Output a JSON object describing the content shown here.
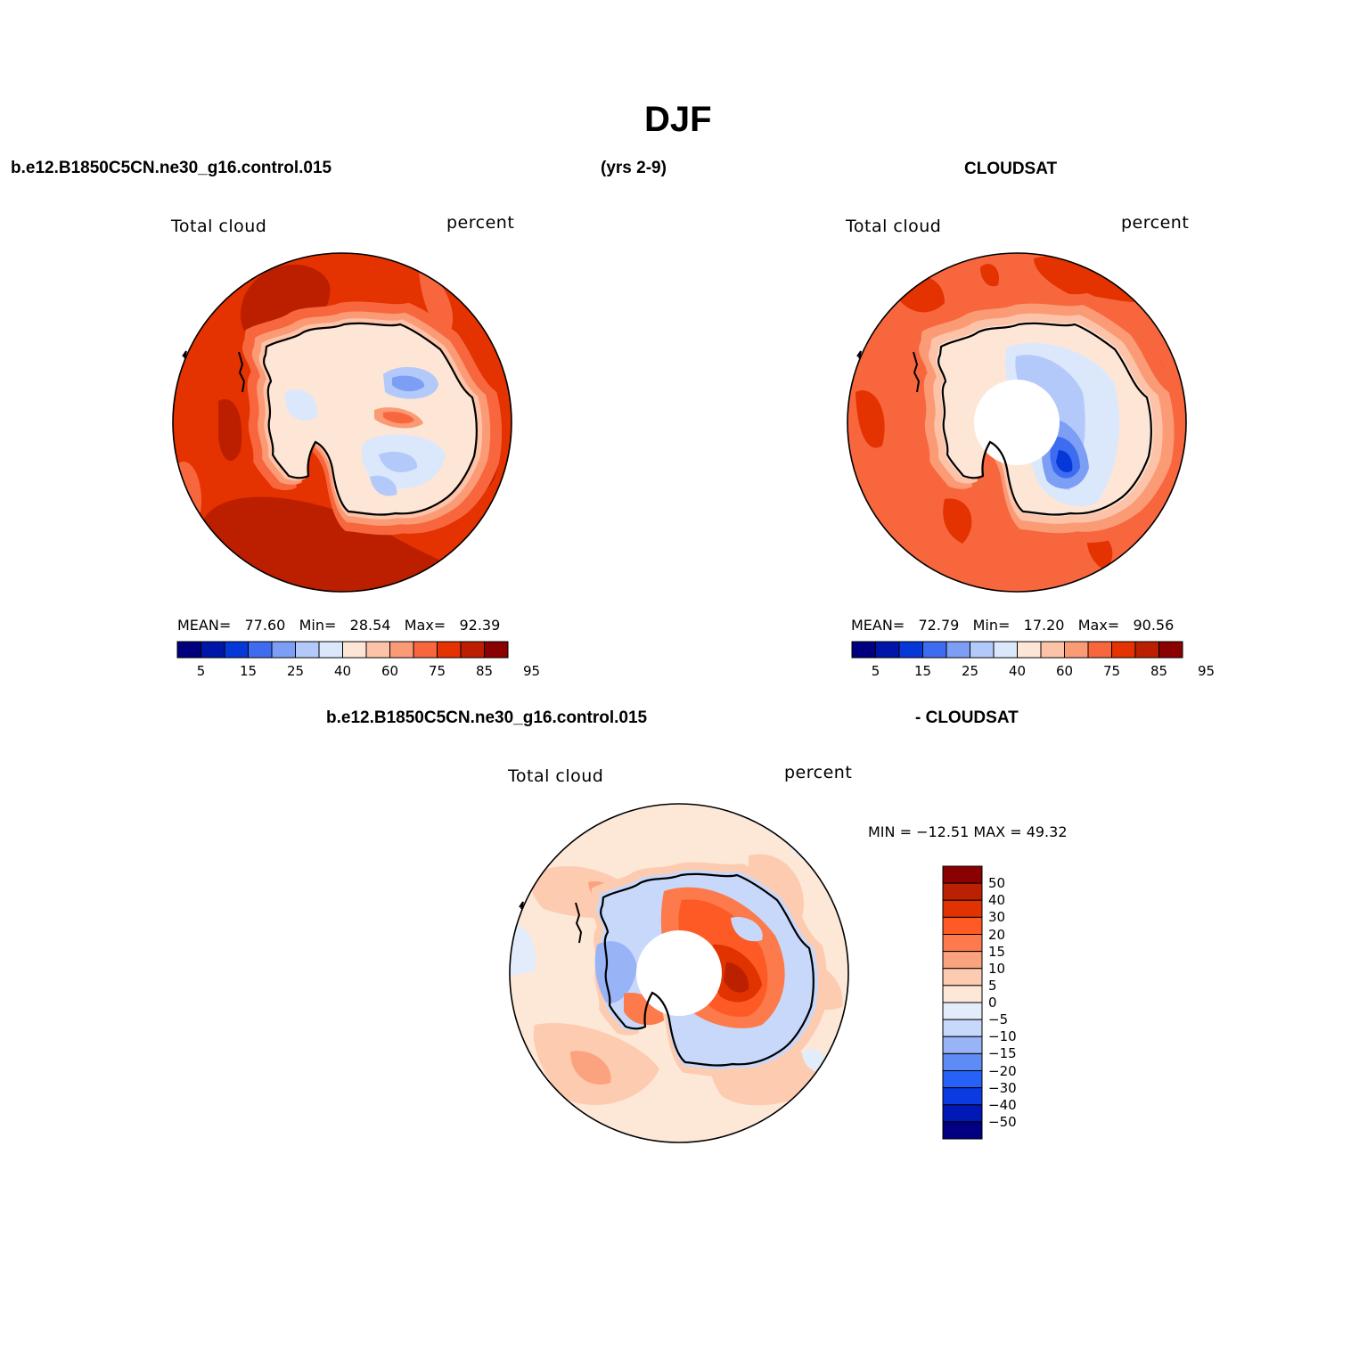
{
  "page": {
    "title": "DJF",
    "case_name": "b.e12.B1850C5CN.ne30_g16.control.015",
    "years": "(yrs 2-9)",
    "obs_name": "CLOUDSAT",
    "diff_case_name": "b.e12.B1850C5CN.ne30_g16.control.015",
    "diff_obs_name": "- CLOUDSAT"
  },
  "panels": {
    "model": {
      "variable": "Total cloud",
      "units": "percent",
      "stats": {
        "mean_label": "MEAN=",
        "mean": "77.60",
        "min_label": "Min=",
        "min": "28.54",
        "max_label": "Max=",
        "max": "92.39"
      }
    },
    "obs": {
      "variable": "Total cloud",
      "units": "percent",
      "stats": {
        "mean_label": "MEAN=",
        "mean": "72.79",
        "min_label": "Min=",
        "min": "17.20",
        "max_label": "Max=",
        "max": "90.56"
      }
    },
    "diff": {
      "variable": "Total cloud",
      "units": "percent",
      "stats": {
        "min_label": "MIN =",
        "min": "−12.51",
        "max_label": "MAX =",
        "max": "49.32"
      }
    }
  },
  "colorbar_abs": {
    "colors": [
      "#00007f",
      "#0016a8",
      "#0538d6",
      "#3d6cf0",
      "#7d9ef5",
      "#b3c9f9",
      "#dbe8fb",
      "#fde6d6",
      "#fdc3a9",
      "#fb9b76",
      "#f8663e",
      "#e43200",
      "#bc1f00",
      "#8b0000"
    ],
    "tick_labels": [
      "5",
      "15",
      "25",
      "40",
      "60",
      "75",
      "85",
      "95"
    ]
  },
  "colorbar_diff": {
    "colors": [
      "#8b0000",
      "#bb2100",
      "#e03300",
      "#fd5a25",
      "#fc7a4b",
      "#fba37f",
      "#fdcbb0",
      "#fde8d8",
      "#e3ecfb",
      "#c8d8fa",
      "#98b4f6",
      "#5f8cf4",
      "#2761f7",
      "#0a3ae0",
      "#0018b5",
      "#000080"
    ],
    "tick_labels": [
      "50",
      "40",
      "30",
      "20",
      "15",
      "10",
      "5",
      "0",
      "−5",
      "−10",
      "−15",
      "−20",
      "−30",
      "−40",
      "−50"
    ]
  },
  "chart_data": [
    {
      "type": "heatmap",
      "title": "b.e12.B1850C5CN.ne30_g16.control.015",
      "subtitle": "Total cloud",
      "units": "percent",
      "projection": "south-polar-stereographic",
      "mean": 77.6,
      "min": 28.54,
      "max": 92.39,
      "color_levels": [
        5,
        10,
        15,
        20,
        25,
        30,
        40,
        50,
        60,
        70,
        75,
        80,
        85,
        90,
        95
      ]
    },
    {
      "type": "heatmap",
      "title": "CLOUDSAT",
      "subtitle": "Total cloud",
      "units": "percent",
      "projection": "south-polar-stereographic",
      "mean": 72.79,
      "min": 17.2,
      "max": 90.56,
      "color_levels": [
        5,
        10,
        15,
        20,
        25,
        30,
        40,
        50,
        60,
        70,
        75,
        80,
        85,
        90,
        95
      ]
    },
    {
      "type": "heatmap",
      "title": "b.e12.B1850C5CN.ne30_g16.control.015 - CLOUDSAT",
      "subtitle": "Total cloud",
      "units": "percent",
      "projection": "south-polar-stereographic",
      "min": -12.51,
      "max": 49.32,
      "color_levels": [
        -50,
        -40,
        -30,
        -20,
        -15,
        -10,
        -5,
        0,
        5,
        10,
        15,
        20,
        30,
        40,
        50
      ]
    }
  ]
}
